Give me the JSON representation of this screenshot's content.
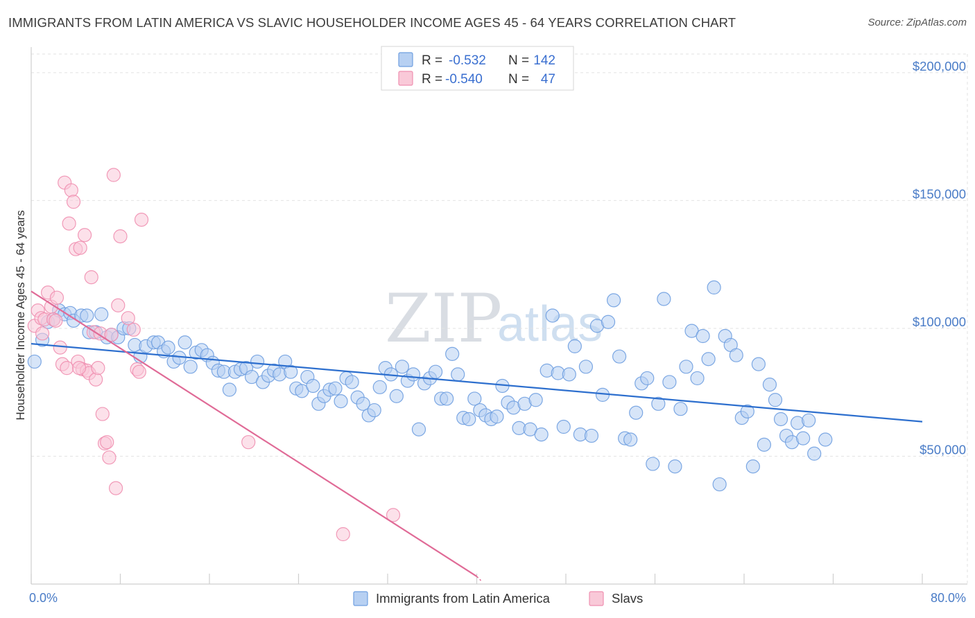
{
  "title": "IMMIGRANTS FROM LATIN AMERICA VS SLAVIC HOUSEHOLDER INCOME AGES 45 - 64 YEARS CORRELATION CHART",
  "source": "Source: ZipAtlas.com",
  "watermark": {
    "zip": "ZIP",
    "atlas": "atlas"
  },
  "legend": {
    "r_label": "R =",
    "n_label": "N =",
    "rows": [
      {
        "r": "-0.532",
        "n": "142",
        "color": "#a9c7ef"
      },
      {
        "r": "-0.540",
        "n": "47",
        "color": "#f6b8cc"
      }
    ]
  },
  "chart_data": {
    "type": "scatter",
    "xlabel": "",
    "ylabel": "Householder Income Ages 45 - 64 years",
    "xlim": [
      0,
      80
    ],
    "ylim": [
      0,
      210000
    ],
    "x_tick_labels": [
      "0.0%",
      "80.0%"
    ],
    "y_ticks": [
      50000,
      100000,
      150000,
      200000
    ],
    "y_tick_labels": [
      "$50,000",
      "$100,000",
      "$150,000",
      "$200,000"
    ],
    "grid": true,
    "series": [
      {
        "name": "Immigrants from Latin America",
        "color": "#6f9fe0",
        "fill": "#b7d0f2",
        "trend": {
          "x0": 0,
          "y0": 94000,
          "x1": 80,
          "y1": 63500,
          "color": "#2d6fce"
        },
        "points": [
          [
            0.3,
            87000
          ],
          [
            1.0,
            95500
          ],
          [
            1.5,
            102500
          ],
          [
            2.0,
            103500
          ],
          [
            2.5,
            107000
          ],
          [
            3.0,
            105500
          ],
          [
            3.5,
            106000
          ],
          [
            3.8,
            103000
          ],
          [
            4.5,
            105000
          ],
          [
            5.0,
            105000
          ],
          [
            5.2,
            98500
          ],
          [
            5.8,
            98500
          ],
          [
            6.3,
            105500
          ],
          [
            6.8,
            96500
          ],
          [
            7.2,
            97500
          ],
          [
            7.8,
            96500
          ],
          [
            8.3,
            100000
          ],
          [
            8.8,
            100000
          ],
          [
            9.3,
            93500
          ],
          [
            9.8,
            89000
          ],
          [
            10.3,
            93000
          ],
          [
            11.0,
            94500
          ],
          [
            11.4,
            94500
          ],
          [
            11.9,
            91000
          ],
          [
            12.3,
            92500
          ],
          [
            12.8,
            87000
          ],
          [
            13.3,
            88500
          ],
          [
            13.8,
            94500
          ],
          [
            14.3,
            85000
          ],
          [
            14.8,
            90500
          ],
          [
            15.3,
            91500
          ],
          [
            15.8,
            89500
          ],
          [
            16.3,
            86500
          ],
          [
            16.8,
            83500
          ],
          [
            17.3,
            83000
          ],
          [
            17.8,
            76000
          ],
          [
            18.3,
            83000
          ],
          [
            18.8,
            84000
          ],
          [
            19.3,
            84500
          ],
          [
            19.8,
            81000
          ],
          [
            20.3,
            87000
          ],
          [
            20.8,
            79000
          ],
          [
            21.3,
            81500
          ],
          [
            21.8,
            83500
          ],
          [
            22.3,
            82000
          ],
          [
            22.8,
            87000
          ],
          [
            23.3,
            83000
          ],
          [
            23.8,
            76500
          ],
          [
            24.3,
            75500
          ],
          [
            24.8,
            81000
          ],
          [
            25.3,
            77500
          ],
          [
            25.8,
            70500
          ],
          [
            26.3,
            73500
          ],
          [
            26.8,
            76000
          ],
          [
            27.3,
            76500
          ],
          [
            27.8,
            71500
          ],
          [
            28.3,
            80500
          ],
          [
            28.8,
            79000
          ],
          [
            29.3,
            73000
          ],
          [
            29.8,
            70500
          ],
          [
            30.3,
            66000
          ],
          [
            30.8,
            68000
          ],
          [
            31.3,
            77000
          ],
          [
            31.8,
            84500
          ],
          [
            32.3,
            82000
          ],
          [
            32.8,
            73500
          ],
          [
            33.3,
            85000
          ],
          [
            33.8,
            79500
          ],
          [
            34.3,
            82000
          ],
          [
            34.8,
            60500
          ],
          [
            35.3,
            78500
          ],
          [
            35.8,
            80500
          ],
          [
            36.3,
            83000
          ],
          [
            36.8,
            72500
          ],
          [
            37.3,
            72500
          ],
          [
            37.8,
            90000
          ],
          [
            38.3,
            82000
          ],
          [
            38.8,
            65000
          ],
          [
            39.3,
            64500
          ],
          [
            39.8,
            72500
          ],
          [
            40.3,
            68000
          ],
          [
            40.8,
            66000
          ],
          [
            41.3,
            64500
          ],
          [
            41.8,
            65500
          ],
          [
            42.3,
            77500
          ],
          [
            42.8,
            71000
          ],
          [
            43.3,
            69000
          ],
          [
            43.8,
            61000
          ],
          [
            44.3,
            70500
          ],
          [
            44.8,
            60500
          ],
          [
            45.3,
            72000
          ],
          [
            45.8,
            58500
          ],
          [
            46.3,
            83500
          ],
          [
            46.8,
            105000
          ],
          [
            47.3,
            82500
          ],
          [
            47.8,
            61500
          ],
          [
            48.3,
            82000
          ],
          [
            48.8,
            93000
          ],
          [
            49.3,
            58500
          ],
          [
            49.8,
            85000
          ],
          [
            50.3,
            58000
          ],
          [
            50.8,
            101000
          ],
          [
            51.3,
            74000
          ],
          [
            51.8,
            102500
          ],
          [
            52.3,
            111000
          ],
          [
            52.8,
            89000
          ],
          [
            53.3,
            57000
          ],
          [
            53.8,
            56500
          ],
          [
            54.3,
            67000
          ],
          [
            54.8,
            78500
          ],
          [
            55.3,
            80500
          ],
          [
            55.8,
            47000
          ],
          [
            56.3,
            70500
          ],
          [
            56.8,
            111500
          ],
          [
            57.3,
            79000
          ],
          [
            57.8,
            46000
          ],
          [
            58.3,
            68500
          ],
          [
            58.8,
            85000
          ],
          [
            59.3,
            99000
          ],
          [
            59.8,
            80500
          ],
          [
            60.3,
            97000
          ],
          [
            60.8,
            88000
          ],
          [
            61.3,
            116000
          ],
          [
            61.8,
            39000
          ],
          [
            62.3,
            97000
          ],
          [
            62.8,
            93500
          ],
          [
            63.3,
            89500
          ],
          [
            63.8,
            65000
          ],
          [
            64.3,
            67500
          ],
          [
            64.8,
            46000
          ],
          [
            65.3,
            86000
          ],
          [
            65.8,
            54500
          ],
          [
            66.3,
            78000
          ],
          [
            66.8,
            72000
          ],
          [
            67.3,
            64500
          ],
          [
            67.8,
            58000
          ],
          [
            68.3,
            55500
          ],
          [
            68.8,
            63000
          ],
          [
            69.3,
            57000
          ],
          [
            69.8,
            64000
          ],
          [
            70.3,
            51000
          ],
          [
            71.3,
            56500
          ]
        ]
      },
      {
        "name": "Slavs",
        "color": "#ef8fb0",
        "fill": "#f9c9d8",
        "trend": {
          "x0": 0,
          "y0": 114500,
          "x1": 40,
          "y1": 3000,
          "color": "#e06b97"
        },
        "points": [
          [
            0.3,
            101000
          ],
          [
            0.6,
            107000
          ],
          [
            0.9,
            104000
          ],
          [
            1.2,
            103500
          ],
          [
            1.5,
            114000
          ],
          [
            1.8,
            108500
          ],
          [
            2.0,
            103500
          ],
          [
            2.3,
            112000
          ],
          [
            2.6,
            92500
          ],
          [
            2.8,
            86000
          ],
          [
            3.0,
            157000
          ],
          [
            3.2,
            84500
          ],
          [
            3.4,
            141000
          ],
          [
            3.6,
            154000
          ],
          [
            3.8,
            149500
          ],
          [
            4.0,
            131000
          ],
          [
            4.2,
            87000
          ],
          [
            4.4,
            131500
          ],
          [
            4.6,
            84000
          ],
          [
            4.8,
            136500
          ],
          [
            5.0,
            83500
          ],
          [
            5.2,
            82500
          ],
          [
            5.4,
            120000
          ],
          [
            5.6,
            98500
          ],
          [
            5.8,
            80000
          ],
          [
            6.0,
            84500
          ],
          [
            6.2,
            98000
          ],
          [
            6.4,
            66500
          ],
          [
            6.6,
            55000
          ],
          [
            6.8,
            55500
          ],
          [
            7.0,
            49500
          ],
          [
            7.2,
            97500
          ],
          [
            7.4,
            160000
          ],
          [
            7.6,
            37500
          ],
          [
            7.8,
            109000
          ],
          [
            8.0,
            136000
          ],
          [
            8.7,
            104000
          ],
          [
            9.2,
            99500
          ],
          [
            9.5,
            84000
          ],
          [
            9.9,
            142500
          ],
          [
            19.5,
            55500
          ],
          [
            28.0,
            19500
          ],
          [
            32.5,
            27000
          ],
          [
            1.0,
            98000
          ],
          [
            2.2,
            103000
          ],
          [
            4.3,
            84500
          ],
          [
            9.7,
            83000
          ]
        ]
      }
    ]
  }
}
